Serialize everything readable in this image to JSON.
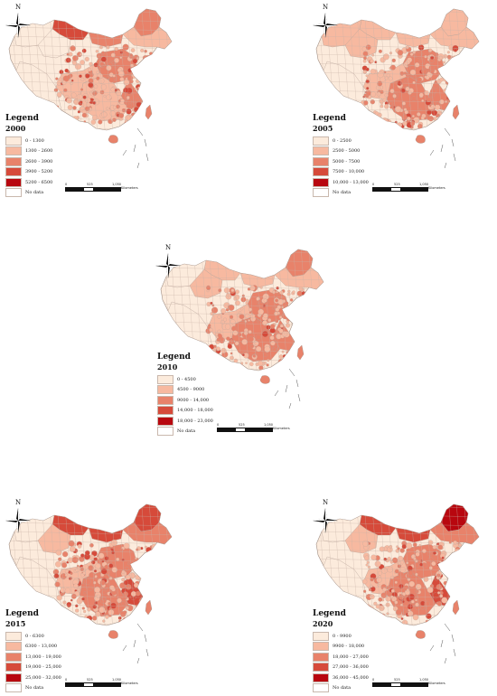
{
  "north_label": "N",
  "legend_title": "Legend",
  "no_data_label": "No data",
  "no_data_color": "#ffffff",
  "scale": {
    "ticks": [
      "0",
      "525",
      "1,050"
    ],
    "unit": "Kilometers"
  },
  "panels": [
    {
      "year": "2000",
      "classes": [
        {
          "range": "0 - 1300",
          "color": "#fcebdc"
        },
        {
          "range": "1300 - 2600",
          "color": "#f7b9a0"
        },
        {
          "range": "2600 - 3900",
          "color": "#e8826a"
        },
        {
          "range": "3900 - 5200",
          "color": "#d64a3a"
        },
        {
          "range": "5200 - 6500",
          "color": "#b8070f"
        }
      ]
    },
    {
      "year": "2005",
      "classes": [
        {
          "range": "0 - 2500",
          "color": "#fcebdc"
        },
        {
          "range": "2500 - 5000",
          "color": "#f7b9a0"
        },
        {
          "range": "5000 - 7500",
          "color": "#e8826a"
        },
        {
          "range": "7500 - 10,000",
          "color": "#d64a3a"
        },
        {
          "range": "10,000 - 13,000",
          "color": "#b8070f"
        }
      ]
    },
    {
      "year": "2010",
      "classes": [
        {
          "range": "0 - 4500",
          "color": "#fcebdc"
        },
        {
          "range": "4500 - 9000",
          "color": "#f7b9a0"
        },
        {
          "range": "9000 - 14,000",
          "color": "#e8826a"
        },
        {
          "range": "14,000 - 18,000",
          "color": "#d64a3a"
        },
        {
          "range": "18,000 - 23,000",
          "color": "#b8070f"
        }
      ]
    },
    {
      "year": "2015",
      "classes": [
        {
          "range": "0 - 6300",
          "color": "#fcebdc"
        },
        {
          "range": "6300 - 13,000",
          "color": "#f7b9a0"
        },
        {
          "range": "13,000 - 19,000",
          "color": "#e8826a"
        },
        {
          "range": "19,000 - 25,000",
          "color": "#d64a3a"
        },
        {
          "range": "25,000 - 32,000",
          "color": "#b8070f"
        }
      ]
    },
    {
      "year": "2020",
      "classes": [
        {
          "range": "0 - 9900",
          "color": "#fcebdc"
        },
        {
          "range": "9900 - 18,000",
          "color": "#f7b9a0"
        },
        {
          "range": "18,000 - 27,000",
          "color": "#e8826a"
        },
        {
          "range": "27,000 - 36,000",
          "color": "#d64a3a"
        },
        {
          "range": "36,000 - 45,000",
          "color": "#b8070f"
        }
      ]
    }
  ]
}
